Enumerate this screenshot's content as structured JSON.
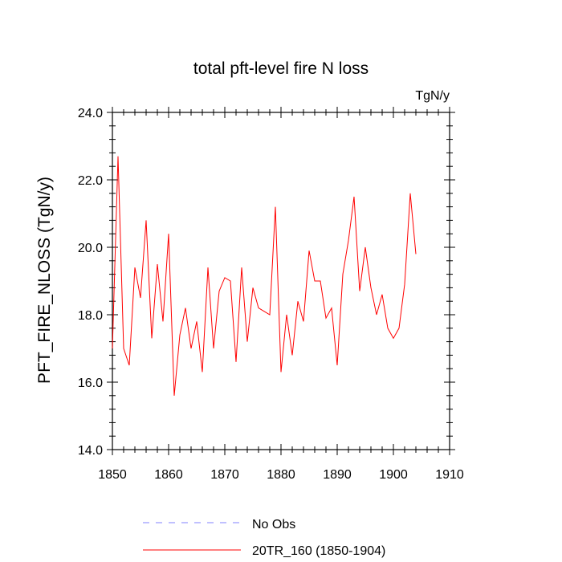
{
  "chart_data": {
    "type": "line",
    "title": "total pft-level fire N loss",
    "units_label": "TgN/y",
    "xlabel": "",
    "ylabel": "PFT_FIRE_NLOSS  (TgN/y)",
    "xlim": [
      1850,
      1910
    ],
    "ylim": [
      14.0,
      24.0
    ],
    "xticks": [
      1850,
      1860,
      1870,
      1880,
      1890,
      1900,
      1910
    ],
    "yticks": [
      14.0,
      16.0,
      18.0,
      20.0,
      22.0,
      24.0
    ],
    "ytick_labels": [
      "14.0",
      "16.0",
      "18.0",
      "20.0",
      "22.0",
      "24.0"
    ],
    "series": [
      {
        "name": "20TR_160 (1850-1904)",
        "color": "#ff0000",
        "style": "solid",
        "x": [
          1850,
          1851,
          1852,
          1853,
          1854,
          1855,
          1856,
          1857,
          1858,
          1859,
          1860,
          1861,
          1862,
          1863,
          1864,
          1865,
          1866,
          1867,
          1868,
          1869,
          1870,
          1871,
          1872,
          1873,
          1874,
          1875,
          1876,
          1877,
          1878,
          1879,
          1880,
          1881,
          1882,
          1883,
          1884,
          1885,
          1886,
          1887,
          1888,
          1889,
          1890,
          1891,
          1892,
          1893,
          1894,
          1895,
          1896,
          1897,
          1898,
          1899,
          1900,
          1901,
          1902,
          1903,
          1904
        ],
        "values": [
          17.0,
          22.7,
          17.0,
          16.5,
          19.4,
          18.5,
          20.8,
          17.3,
          19.5,
          17.8,
          20.4,
          15.6,
          17.4,
          18.2,
          17.0,
          17.8,
          16.3,
          19.4,
          17.0,
          18.7,
          19.1,
          19.0,
          16.6,
          19.4,
          17.2,
          18.8,
          18.2,
          18.1,
          18.0,
          21.2,
          16.3,
          18.0,
          16.8,
          18.4,
          17.8,
          19.9,
          19.0,
          19.0,
          17.9,
          18.2,
          16.5,
          19.2,
          20.2,
          21.5,
          18.7,
          20.0,
          18.8,
          18.0,
          18.6,
          17.6,
          17.3,
          17.6,
          18.9,
          21.6,
          19.8
        ]
      },
      {
        "name": "No Obs",
        "color": "#8080ff",
        "style": "dashed",
        "x": [],
        "values": []
      }
    ],
    "legend": {
      "position": "bottom",
      "entries": [
        {
          "label": "No Obs",
          "color": "#8080ff",
          "style": "dashed"
        },
        {
          "label": "20TR_160 (1850-1904)",
          "color": "#ff0000",
          "style": "solid"
        }
      ]
    }
  }
}
